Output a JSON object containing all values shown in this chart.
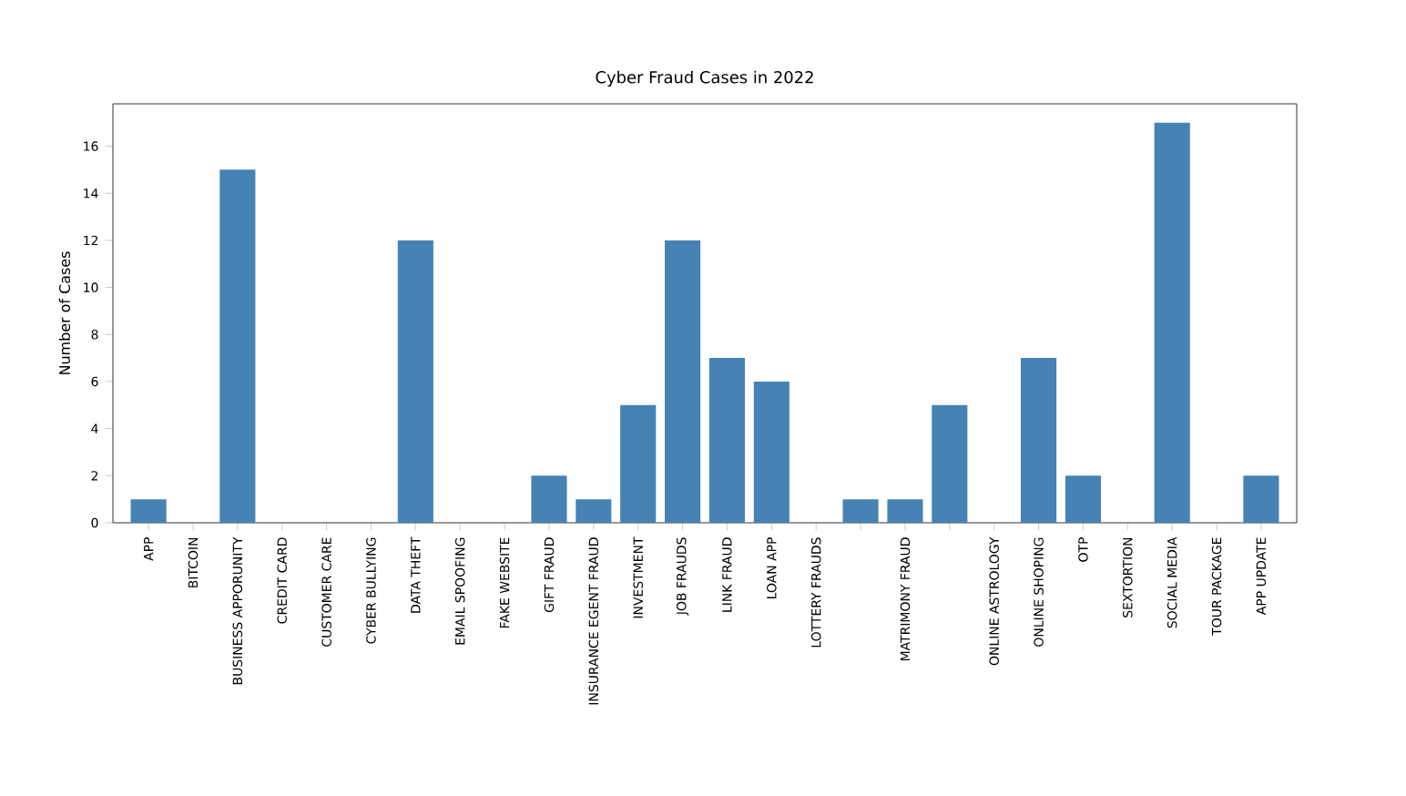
{
  "chart_data": {
    "type": "bar",
    "title": "Cyber Fraud Cases in 2022",
    "ylabel": "Number of Cases",
    "categories": [
      "APP",
      "BITCOIN",
      "BUSINESS APPORUNITY",
      "CREDIT CARD",
      "CUSTOMER CARE",
      "CYBER BULLYING",
      "DATA THEFT",
      "EMAIL SPOOFING",
      "FAKE WEBSITE",
      "GIFT FRAUD",
      "INSURANCE EGENT FRAUD",
      "INVESTMENT",
      "JOB FRAUDS",
      "LINK FRAUD",
      "LOAN APP",
      "LOTTERY FRAUDS",
      null,
      "MATRIMONY FRAUD",
      null,
      "ONLINE ASTROLOGY",
      "ONLINE SHOPING",
      "OTP",
      "SEXTORTION",
      "SOCIAL MEDIA",
      "TOUR PACKAGE",
      "APP UPDATE"
    ],
    "values": [
      1,
      0,
      15,
      0,
      0,
      0,
      12,
      0,
      0,
      2,
      1,
      5,
      12,
      7,
      6,
      0,
      1,
      1,
      5,
      0,
      7,
      2,
      0,
      17,
      0,
      2
    ],
    "color": "#4682b4",
    "ylim": [
      0,
      17.8
    ],
    "yticks": [
      0,
      2,
      4,
      6,
      8,
      10,
      12,
      14,
      16
    ],
    "grid": false
  }
}
